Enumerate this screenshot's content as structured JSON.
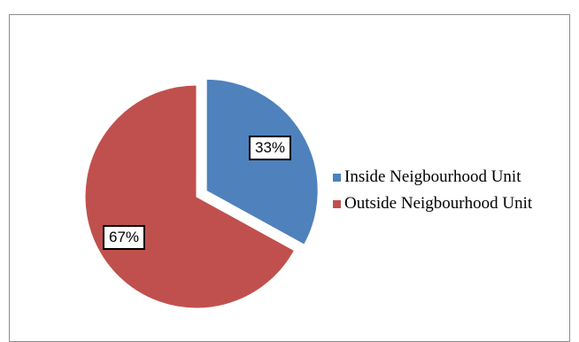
{
  "chart_data": {
    "type": "pie",
    "title": "",
    "legend_position": "right",
    "slices": [
      {
        "name": "Inside Neigbourhood Unit",
        "value": 33,
        "label": "33%",
        "color": "#4f81bd",
        "exploded": true
      },
      {
        "name": "Outside Neigbourhood Unit",
        "value": 67,
        "label": "67%",
        "color": "#c0504d",
        "exploded": false
      }
    ]
  }
}
